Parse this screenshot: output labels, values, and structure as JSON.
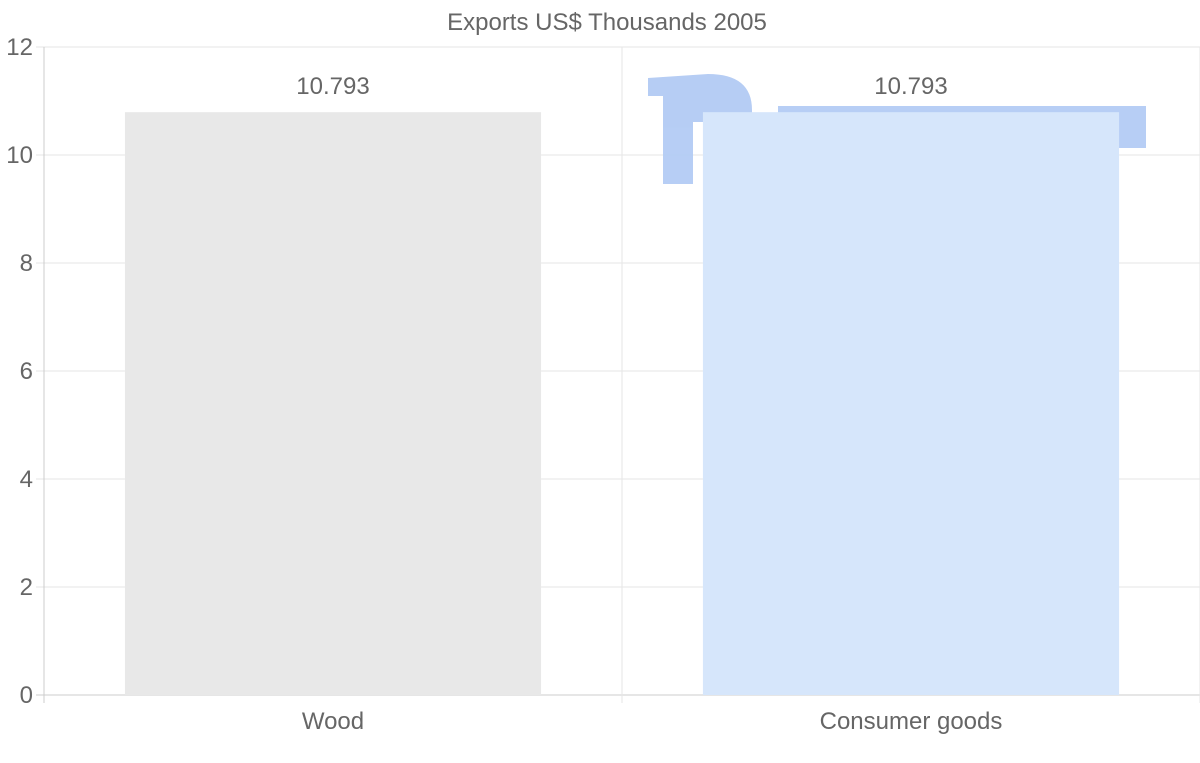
{
  "chart_data": {
    "type": "bar",
    "title": "Exports US$ Thousands 2005",
    "categories": [
      "Wood",
      "Consumer goods"
    ],
    "values": [
      10.793,
      10.793
    ],
    "data_labels": [
      "10.793",
      "10.793"
    ],
    "colors": [
      "#e8e8e8",
      "#d6e6fb"
    ],
    "xlabel": "",
    "ylabel": "",
    "ylim": [
      0,
      12
    ],
    "yticks": [
      0,
      2,
      4,
      6,
      8,
      10,
      12
    ],
    "grid": true,
    "legend": "none"
  }
}
